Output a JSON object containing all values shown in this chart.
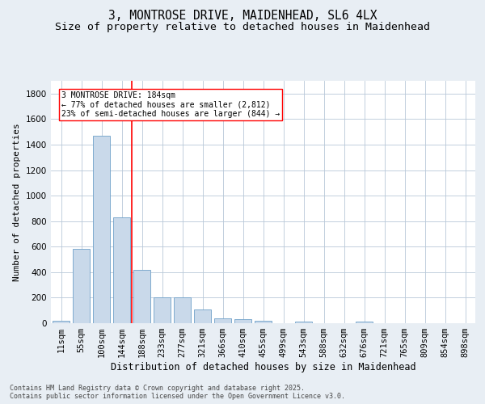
{
  "title_line1": "3, MONTROSE DRIVE, MAIDENHEAD, SL6 4LX",
  "title_line2": "Size of property relative to detached houses in Maidenhead",
  "xlabel": "Distribution of detached houses by size in Maidenhead",
  "ylabel": "Number of detached properties",
  "footnote": "Contains HM Land Registry data © Crown copyright and database right 2025.\nContains public sector information licensed under the Open Government Licence v3.0.",
  "bar_labels": [
    "11sqm",
    "55sqm",
    "100sqm",
    "144sqm",
    "188sqm",
    "233sqm",
    "277sqm",
    "321sqm",
    "366sqm",
    "410sqm",
    "455sqm",
    "499sqm",
    "543sqm",
    "588sqm",
    "632sqm",
    "676sqm",
    "721sqm",
    "765sqm",
    "809sqm",
    "854sqm",
    "898sqm"
  ],
  "bar_values": [
    20,
    580,
    1470,
    830,
    420,
    200,
    200,
    105,
    40,
    30,
    20,
    0,
    15,
    0,
    0,
    15,
    0,
    0,
    0,
    0,
    0
  ],
  "bar_color": "#c9d9ea",
  "bar_edgecolor": "#6fa0c8",
  "vline_x": 3.5,
  "vline_color": "red",
  "annotation_text": "3 MONTROSE DRIVE: 184sqm\n← 77% of detached houses are smaller (2,812)\n23% of semi-detached houses are larger (844) →",
  "annotation_box_color": "white",
  "annotation_box_edgecolor": "red",
  "ylim": [
    0,
    1900
  ],
  "yticks": [
    0,
    200,
    400,
    600,
    800,
    1000,
    1200,
    1400,
    1600,
    1800
  ],
  "bg_color": "#e8eef4",
  "plot_bg_color": "white",
  "grid_color": "#b8c8d8",
  "title_fontsize": 10.5,
  "subtitle_fontsize": 9.5,
  "axis_label_fontsize": 8.5,
  "ylabel_fontsize": 8,
  "tick_fontsize": 7.5,
  "footnote_fontsize": 6
}
